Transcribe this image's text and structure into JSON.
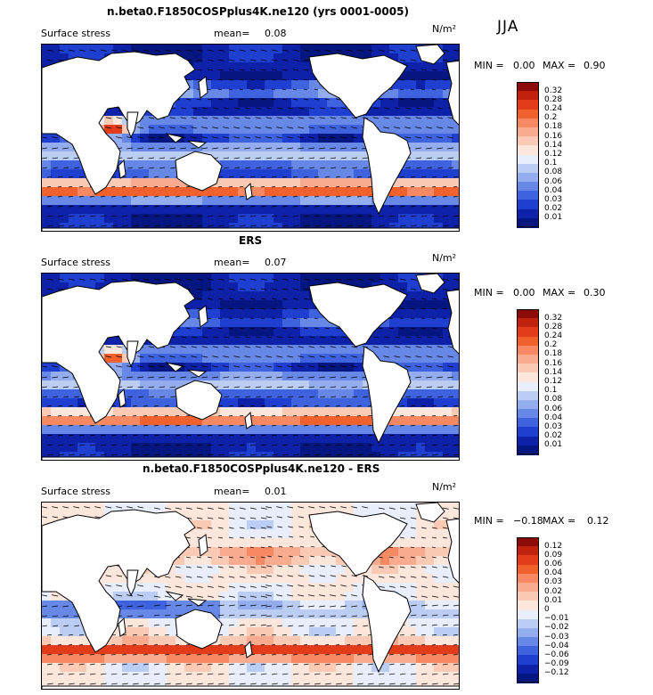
{
  "season": "JJA",
  "panels": [
    {
      "title": "n.beta0.F1850COSPplus4K.ne120 (yrs 0001-0005)",
      "field": "Surface stress",
      "mean_label": "mean=",
      "mean_value": "0.08",
      "units": "N/m²",
      "min_label": "MIN =",
      "min_value": "0.00",
      "max_label": "MAX =",
      "max_value": "0.90",
      "mode": "abs"
    },
    {
      "title": "ERS",
      "field": "Surface stress",
      "mean_label": "mean=",
      "mean_value": "0.07",
      "units": "N/m²",
      "min_label": "MIN =",
      "min_value": "0.00",
      "max_label": "MAX =",
      "max_value": "0.30",
      "mode": "obs"
    },
    {
      "title": "n.beta0.F1850COSPplus4K.ne120 - ERS",
      "field": "Surface stress",
      "mean_label": "mean=",
      "mean_value": "0.01",
      "units": "N/m²",
      "min_label": "MIN =",
      "min_value": "−0.18",
      "max_label": "MAX =",
      "max_value": "0.12",
      "mode": "diff"
    }
  ],
  "colorbars": {
    "abs": {
      "labels": [
        "0.32",
        "0.28",
        "0.24",
        "0.2",
        "0.18",
        "0.16",
        "0.14",
        "0.12",
        "0.1",
        "0.08",
        "0.06",
        "0.04",
        "0.03",
        "0.02",
        "0.01"
      ],
      "colors": [
        "#8c0a0a",
        "#c0220e",
        "#e23c1a",
        "#f0612e",
        "#f68862",
        "#f9ab8f",
        "#fbcab5",
        "#fde6dc",
        "#e8eefb",
        "#bccdf4",
        "#93adee",
        "#6788e6",
        "#3f63df",
        "#1f3fd0",
        "#0d22a8",
        "#061680"
      ]
    },
    "diff": {
      "labels": [
        "0.12",
        "0.09",
        "0.06",
        "0.04",
        "0.03",
        "0.02",
        "0.01",
        "0",
        "−0.01",
        "−0.02",
        "−0.03",
        "−0.04",
        "−0.06",
        "−0.09",
        "−0.12"
      ],
      "colors": [
        "#8c0a0a",
        "#c0220e",
        "#e23c1a",
        "#f0612e",
        "#f68862",
        "#f9ab8f",
        "#fbcab5",
        "#fde6dc",
        "#e8eefb",
        "#bccdf4",
        "#93adee",
        "#6788e6",
        "#3f63df",
        "#1f3fd0",
        "#0d22a8",
        "#061680"
      ]
    }
  },
  "chart_data": {
    "type": "heatmap",
    "title": "Surface stress (JJA)",
    "projection": "global cylindrical, Pacific-centred",
    "panels": [
      "model",
      "observations (ERS)",
      "model - ERS"
    ],
    "overlay": "wind-stress vectors"
  }
}
